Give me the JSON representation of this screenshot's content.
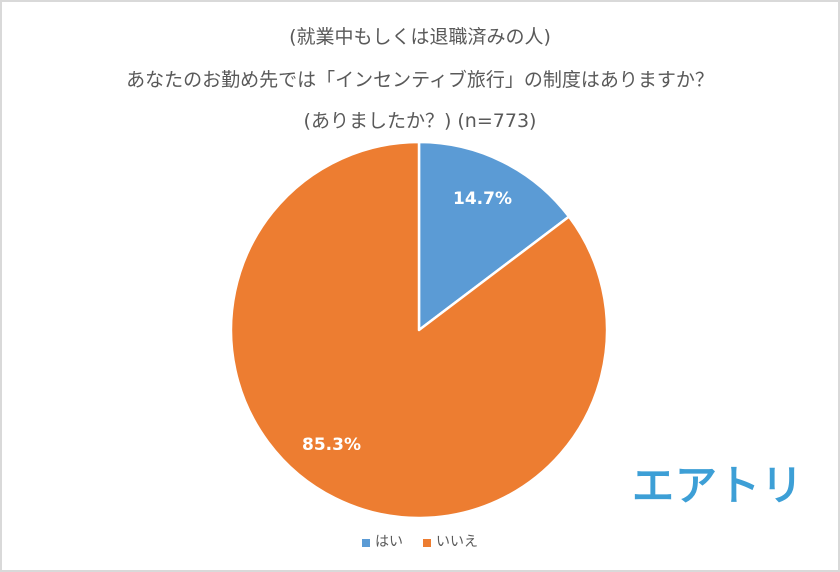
{
  "chart": {
    "title_lines": [
      "(就業中もしくは退職済みの人)",
      "あなたのお勤め先では「インセンティブ旅行」の制度はありますか？",
      "(ありましたか？) (n=773)"
    ],
    "labels": {
      "yes_pct": "14.7%",
      "no_pct": "85.3%"
    },
    "legend": [
      {
        "label": "はい",
        "color": "#5b9bd5"
      },
      {
        "label": "いいえ",
        "color": "#ed7d31"
      }
    ]
  },
  "logo": {
    "text": "エアトリ",
    "color": "#3d9fd6"
  },
  "chart_data": {
    "type": "pie",
    "title": "(就業中もしくは退職済みの人) あなたのお勤め先では「インセンティブ旅行」の制度はありますか？ (ありましたか？) (n=773)",
    "categories": [
      "はい",
      "いいえ"
    ],
    "values": [
      14.7,
      85.3
    ],
    "unit": "%",
    "colors": [
      "#5b9bd5",
      "#ed7d31"
    ],
    "n": 773,
    "legend_position": "bottom",
    "data_labels": [
      "14.7%",
      "85.3%"
    ],
    "start_angle": "12 o'clock, clockwise"
  }
}
